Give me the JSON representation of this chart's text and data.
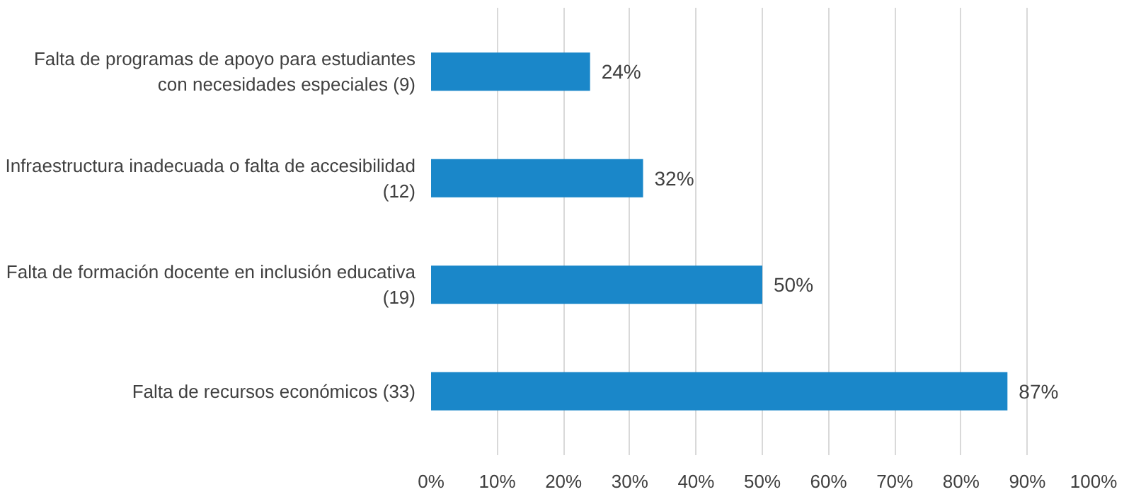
{
  "chart_data": {
    "type": "bar",
    "orientation": "horizontal",
    "categories": [
      "Falta de programas de apoyo para estudiantes\ncon necesidades especiales (9)",
      "Infraestructura inadecuada o falta de accesibilidad\n(12)",
      "Falta de formación docente en inclusión educativa\n(19)",
      "Falta de recursos económicos (33)"
    ],
    "values": [
      24,
      32,
      50,
      87
    ],
    "value_labels": [
      "24%",
      "32%",
      "50%",
      "87%"
    ],
    "color": "#1a87c9",
    "xlim": [
      0,
      100
    ],
    "xticks": [
      {
        "value": 0,
        "label": "0%"
      },
      {
        "value": 10,
        "label": "10%"
      },
      {
        "value": 20,
        "label": "20%"
      },
      {
        "value": 30,
        "label": "30%"
      },
      {
        "value": 40,
        "label": "40%"
      },
      {
        "value": 50,
        "label": "50%"
      },
      {
        "value": 60,
        "label": "60%"
      },
      {
        "value": 70,
        "label": "70%"
      },
      {
        "value": 80,
        "label": "80%"
      },
      {
        "value": 90,
        "label": "90%"
      },
      {
        "value": 100,
        "label": "100%"
      }
    ],
    "grid": "x"
  }
}
